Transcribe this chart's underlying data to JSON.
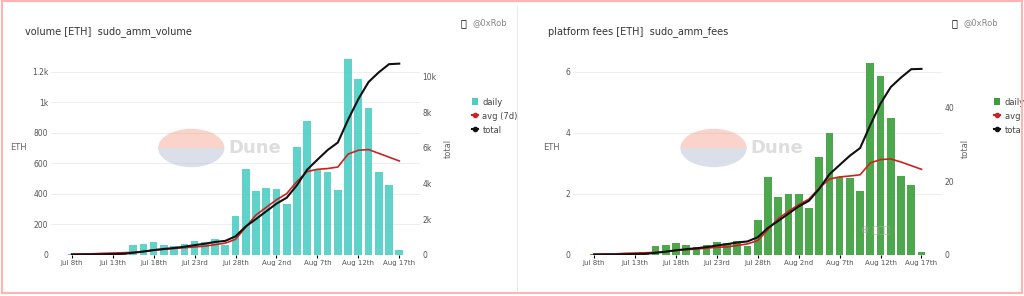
{
  "chart1": {
    "title": "volume [ETH]",
    "subtitle": "sudo_amm_volume",
    "ylabel_left": "ETH",
    "ylabel_right": "total",
    "bar_color": "#4ecdc4",
    "avg_color": "#cc2222",
    "total_color": "#111111",
    "bar_values": [
      3,
      5,
      2,
      10,
      12,
      8,
      60,
      70,
      80,
      65,
      55,
      70,
      90,
      80,
      100,
      60,
      255,
      560,
      415,
      435,
      430,
      335,
      705,
      875,
      560,
      545,
      425,
      1285,
      1155,
      965,
      545,
      460,
      30
    ],
    "avg7d_values": [
      3,
      4,
      5,
      8,
      10,
      12,
      15,
      20,
      30,
      35,
      40,
      45,
      50,
      55,
      65,
      75,
      100,
      180,
      260,
      310,
      360,
      400,
      480,
      545,
      560,
      565,
      575,
      660,
      685,
      690,
      665,
      640,
      615
    ],
    "total_values": [
      3,
      8,
      10,
      20,
      32,
      40,
      100,
      170,
      250,
      315,
      370,
      440,
      530,
      610,
      710,
      770,
      1025,
      1585,
      2000,
      2435,
      2865,
      3200,
      3905,
      4780,
      5340,
      5885,
      6310,
      7595,
      8750,
      9715,
      10260,
      10720,
      10750
    ],
    "ylim_left": [
      0,
      1400
    ],
    "ylim_right": [
      0,
      12000
    ],
    "yticks_left": [
      0,
      200,
      400,
      600,
      800,
      1000,
      1200
    ],
    "ytick_labels_left": [
      "0",
      "200",
      "400",
      "600",
      "800",
      "1k",
      "1.2k"
    ],
    "yticks_right": [
      0,
      2000,
      4000,
      6000,
      8000,
      10000
    ],
    "ytick_labels_right": [
      "0",
      "2k",
      "4k",
      "6k",
      "8k",
      "10k"
    ]
  },
  "chart2": {
    "title": "platform fees [ETH]",
    "subtitle": "sudo_amm_fees",
    "ylabel_left": "ETH",
    "ylabel_right": "total",
    "bar_color": "#3a9e3a",
    "avg_color": "#cc2222",
    "total_color": "#111111",
    "bar_values": [
      0.01,
      0.02,
      0.01,
      0.05,
      0.06,
      0.04,
      0.28,
      0.32,
      0.37,
      0.3,
      0.26,
      0.32,
      0.42,
      0.37,
      0.46,
      0.28,
      1.15,
      2.55,
      1.88,
      1.98,
      1.98,
      1.52,
      3.22,
      3.98,
      2.55,
      2.52,
      2.08,
      6.28,
      5.85,
      4.48,
      2.58,
      2.28,
      0.08
    ],
    "avg7d_values": [
      0.01,
      0.02,
      0.02,
      0.04,
      0.05,
      0.06,
      0.07,
      0.09,
      0.14,
      0.16,
      0.18,
      0.21,
      0.24,
      0.25,
      0.3,
      0.35,
      0.46,
      0.82,
      1.18,
      1.42,
      1.64,
      1.82,
      2.18,
      2.48,
      2.55,
      2.58,
      2.62,
      3.01,
      3.12,
      3.14,
      3.04,
      2.92,
      2.8
    ],
    "total_values": [
      0.01,
      0.03,
      0.04,
      0.09,
      0.15,
      0.19,
      0.47,
      0.79,
      1.16,
      1.46,
      1.72,
      2.04,
      2.46,
      2.83,
      3.29,
      3.57,
      4.72,
      7.27,
      9.15,
      11.13,
      13.11,
      14.63,
      17.85,
      21.83,
      24.38,
      26.9,
      28.98,
      35.26,
      41.11,
      45.59,
      48.17,
      50.45,
      50.53
    ],
    "ylim_left": [
      0,
      7
    ],
    "ylim_right": [
      0,
      58
    ],
    "yticks_left": [
      0,
      2,
      4,
      6
    ],
    "ytick_labels_left": [
      "0",
      "2",
      "4",
      "6"
    ],
    "yticks_right": [
      0,
      20,
      40
    ],
    "ytick_labels_right": [
      "0",
      "20",
      "40"
    ]
  },
  "n_bars": 33,
  "x_labels": [
    "Jul 8th",
    "Jul 13th",
    "Jul 18th",
    "Jul 23rd",
    "Jul 28th",
    "Aug 2nd",
    "Aug 7th",
    "Aug 12th",
    "Aug 17th"
  ],
  "x_tick_positions": [
    0,
    4,
    8,
    12,
    16,
    20,
    24,
    28,
    32
  ],
  "author_text": "@0xRob",
  "watermark_color_top": "#f4a08a",
  "watermark_color_bottom": "#b0b8d0",
  "border_color": "#ffb3b3",
  "background_color": "#ffffff"
}
